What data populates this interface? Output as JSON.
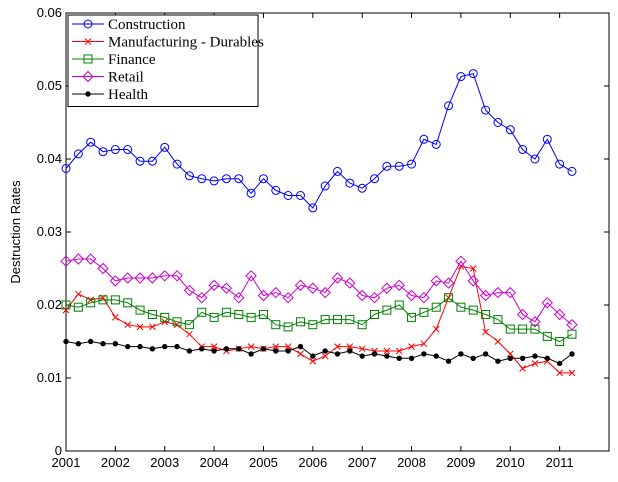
{
  "chart_data": {
    "type": "line",
    "y_label": "Destruction Rates",
    "x": [
      2001,
      2001.25,
      2001.5,
      2001.75,
      2002,
      2002.25,
      2002.5,
      2002.75,
      2003,
      2003.25,
      2003.5,
      2003.75,
      2004,
      2004.25,
      2004.5,
      2004.75,
      2005,
      2005.25,
      2005.5,
      2005.75,
      2006,
      2006.25,
      2006.5,
      2006.75,
      2007,
      2007.25,
      2007.5,
      2007.75,
      2008,
      2008.25,
      2008.5,
      2008.75,
      2009,
      2009.25,
      2009.5,
      2009.75,
      2010,
      2010.25,
      2010.5,
      2010.75,
      2011,
      2011.25
    ],
    "xlim": [
      2001,
      2012
    ],
    "xticks": [
      2001,
      2002,
      2003,
      2004,
      2005,
      2006,
      2007,
      2008,
      2009,
      2010,
      2011
    ],
    "ylim": [
      0,
      0.06
    ],
    "yticks": [
      0,
      0.01,
      0.02,
      0.03,
      0.04,
      0.05,
      0.06
    ],
    "legend": "upper-left",
    "grid": false,
    "series": [
      {
        "name": "Construction",
        "color": "#0000ff",
        "marker": "circle",
        "values": [
          0.0387,
          0.0407,
          0.0423,
          0.041,
          0.0413,
          0.0413,
          0.0397,
          0.0397,
          0.0416,
          0.0393,
          0.0377,
          0.0373,
          0.037,
          0.0373,
          0.0373,
          0.0353,
          0.0373,
          0.0357,
          0.035,
          0.035,
          0.0333,
          0.0363,
          0.0383,
          0.0367,
          0.036,
          0.0373,
          0.039,
          0.039,
          0.0393,
          0.0427,
          0.042,
          0.0473,
          0.0513,
          0.0517,
          0.0467,
          0.045,
          0.044,
          0.0413,
          0.04,
          0.0427,
          0.0393,
          0.0383
        ]
      },
      {
        "name": "Manufacturing - Durables",
        "color": "#ff0000",
        "marker": "x",
        "values": [
          0.0193,
          0.0215,
          0.0207,
          0.021,
          0.0183,
          0.0173,
          0.017,
          0.017,
          0.0177,
          0.0173,
          0.016,
          0.0143,
          0.0143,
          0.0137,
          0.014,
          0.0143,
          0.014,
          0.0143,
          0.0143,
          0.0133,
          0.0123,
          0.013,
          0.0143,
          0.0143,
          0.014,
          0.0137,
          0.0137,
          0.0137,
          0.0143,
          0.0147,
          0.0167,
          0.021,
          0.0253,
          0.025,
          0.0163,
          0.015,
          0.0133,
          0.0113,
          0.012,
          0.0123,
          0.0107,
          0.0107
        ]
      },
      {
        "name": "Finance",
        "color": "#008000",
        "marker": "square",
        "values": [
          0.02,
          0.0197,
          0.0203,
          0.0207,
          0.0207,
          0.0203,
          0.0193,
          0.0187,
          0.0183,
          0.0177,
          0.0173,
          0.019,
          0.0183,
          0.019,
          0.0187,
          0.0183,
          0.0187,
          0.0173,
          0.017,
          0.0177,
          0.0173,
          0.018,
          0.018,
          0.018,
          0.0173,
          0.0187,
          0.0193,
          0.02,
          0.0183,
          0.019,
          0.0197,
          0.021,
          0.0197,
          0.0193,
          0.0187,
          0.018,
          0.0167,
          0.0167,
          0.0167,
          0.0157,
          0.015,
          0.016
        ]
      },
      {
        "name": "Retail",
        "color": "#cc00cc",
        "marker": "diamond",
        "values": [
          0.026,
          0.0263,
          0.0263,
          0.025,
          0.0233,
          0.0237,
          0.0237,
          0.0237,
          0.024,
          0.024,
          0.022,
          0.021,
          0.0227,
          0.0223,
          0.021,
          0.024,
          0.0213,
          0.0217,
          0.021,
          0.0227,
          0.0223,
          0.0217,
          0.0237,
          0.023,
          0.0213,
          0.021,
          0.0223,
          0.0227,
          0.0213,
          0.021,
          0.0233,
          0.023,
          0.026,
          0.0233,
          0.0213,
          0.0217,
          0.0217,
          0.0187,
          0.0177,
          0.0203,
          0.0187,
          0.0173
        ]
      },
      {
        "name": "Health",
        "color": "#000000",
        "marker": "dot",
        "values": [
          0.015,
          0.0147,
          0.015,
          0.0147,
          0.0147,
          0.0143,
          0.0143,
          0.014,
          0.0143,
          0.0143,
          0.0137,
          0.014,
          0.0137,
          0.014,
          0.014,
          0.0133,
          0.014,
          0.0137,
          0.0137,
          0.0143,
          0.013,
          0.0137,
          0.0133,
          0.0137,
          0.013,
          0.0133,
          0.013,
          0.0127,
          0.0127,
          0.0133,
          0.013,
          0.0123,
          0.0133,
          0.0127,
          0.0133,
          0.0123,
          0.0127,
          0.0127,
          0.013,
          0.0127,
          0.012,
          0.0133
        ]
      }
    ]
  }
}
